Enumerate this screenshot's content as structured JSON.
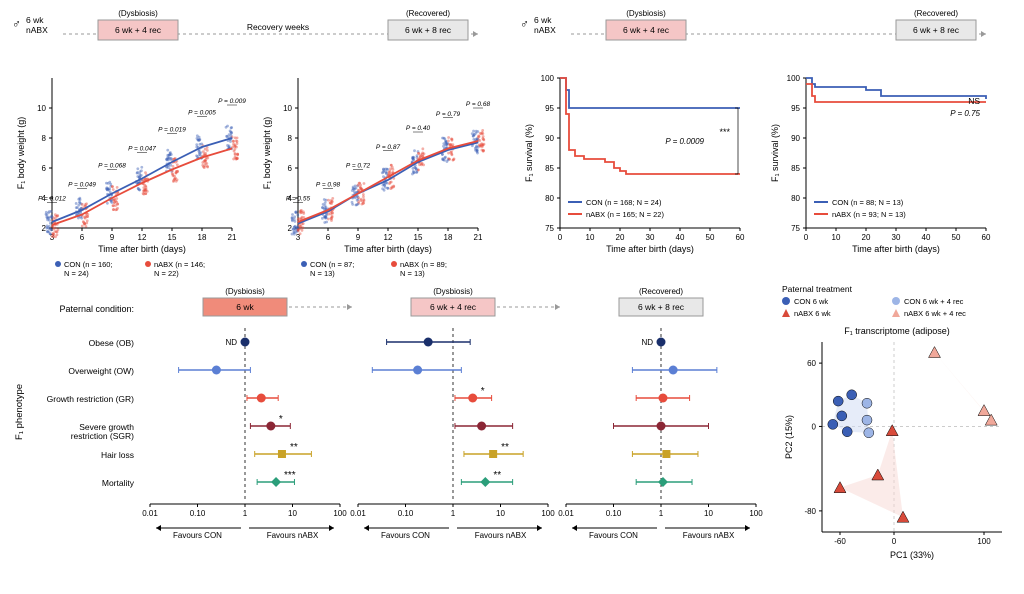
{
  "colors": {
    "con": "#3b5fb5",
    "nabx": "#e74c3c",
    "con_light": "#8ea8e0",
    "nabx_light": "#f5a99f",
    "dysbiosis_box": "#f5c6c6",
    "dysbiosis_box_dark": "#f08b7a",
    "recovered_box": "#e8e8e8",
    "grid": "#e0e0e0",
    "axis": "#000000",
    "text": "#000000",
    "forest_obese": "#1a2f6b",
    "forest_ow": "#5b7fd4",
    "forest_gr": "#e74c3c",
    "forest_sgr": "#8b2635",
    "forest_hair": "#c9a227",
    "forest_mort": "#2b9e7a"
  },
  "timelines": {
    "left": {
      "male_label": "6 wk\nnABX",
      "box1_super": "(Dysbiosis)",
      "box1": "6 wk + 4 rec",
      "mid": "Recovery weeks",
      "box2_super": "(Recovered)",
      "box2": "6 wk + 8 rec"
    },
    "right": {
      "male_label": "6 wk\nnABX",
      "box1_super": "(Dysbiosis)",
      "box1": "6 wk + 4 rec",
      "box2_super": "(Recovered)",
      "box2": "6 wk + 8 rec"
    }
  },
  "growth_charts": {
    "ylabel": "F₁ body weight (g)",
    "xlabel": "Time after birth (days)",
    "ylim": [
      2,
      12
    ],
    "yticks": [
      2,
      4,
      6,
      8,
      10
    ],
    "xticks": [
      3,
      6,
      9,
      12,
      15,
      18,
      21
    ],
    "left": {
      "pvals": [
        "P = 0.012",
        "P = 0.049",
        "P = 0.068",
        "P = 0.047",
        "P = 0.019",
        "P = 0.005",
        "P = 0.009"
      ],
      "con_curve": [
        2.4,
        3.2,
        4.3,
        5.3,
        6.4,
        7.4,
        8.0
      ],
      "nabx_curve": [
        2.2,
        2.9,
        4.0,
        5.0,
        5.9,
        6.7,
        7.3
      ],
      "legend_con": "CON (n = 160; N = 24)",
      "legend_nabx": "nABX (n = 146; N = 22)"
    },
    "right": {
      "pvals": [
        "P = 0.55",
        "P = 0.98",
        "P = 0.72",
        "P = 0.87",
        "P = 0.40",
        "P = 0.79",
        "P = 0.68"
      ],
      "con_curve": [
        2.3,
        3.1,
        4.3,
        5.2,
        6.4,
        7.2,
        7.7
      ],
      "nabx_curve": [
        2.4,
        3.2,
        4.3,
        5.4,
        6.5,
        7.3,
        7.8
      ],
      "legend_con": "CON (n = 87; N = 13)",
      "legend_nabx": "nABX (n = 89; N = 13)"
    }
  },
  "survival": {
    "ylabel": "F₁ survival (%)",
    "xlabel": "Time after birth (days)",
    "ylim": [
      75,
      100
    ],
    "yticks": [
      75,
      80,
      85,
      90,
      95,
      100
    ],
    "xticks": [
      0,
      10,
      20,
      30,
      40,
      50,
      60
    ],
    "left": {
      "con_steps": [
        [
          0,
          100
        ],
        [
          2,
          98
        ],
        [
          3,
          95
        ],
        [
          60,
          95
        ]
      ],
      "nabx_steps": [
        [
          0,
          100
        ],
        [
          2,
          94
        ],
        [
          3,
          88
        ],
        [
          5,
          87
        ],
        [
          8,
          86.5
        ],
        [
          15,
          86
        ],
        [
          18,
          85
        ],
        [
          20,
          84.5
        ],
        [
          22,
          84
        ],
        [
          60,
          84
        ]
      ],
      "p_label": "*** P = 0.0009",
      "legend_con": "CON (n = 168; N = 24)",
      "legend_nabx": "nABX (n = 165; N = 22)"
    },
    "right": {
      "con_steps": [
        [
          0,
          100
        ],
        [
          2,
          99
        ],
        [
          3,
          98.5
        ],
        [
          20,
          98
        ],
        [
          25,
          97
        ],
        [
          60,
          96.5
        ]
      ],
      "nabx_steps": [
        [
          0,
          99
        ],
        [
          2,
          97
        ],
        [
          3,
          96
        ],
        [
          20,
          96
        ],
        [
          30,
          96
        ],
        [
          60,
          96
        ]
      ],
      "p_label": "NS\nP = 0.75",
      "legend_con": "CON (n = 88; N = 13)",
      "legend_nabx": "nABX (n = 93; N = 13)"
    }
  },
  "forest": {
    "ylabel": "F₁ phenotype",
    "row_super": "Paternal condition:",
    "categories": [
      "Obese (OB)",
      "Overweight (OW)",
      "Growth restriction (GR)",
      "Severe growth\nrestriction (SGR)",
      "Hair loss",
      "Mortality"
    ],
    "xlabel_left": "Favours CON",
    "xlabel_right": "Favours nABX",
    "xticks": [
      0.01,
      0.1,
      1,
      10,
      100
    ],
    "xtick_labels": [
      "0.01",
      "0.10",
      "1",
      "10",
      "100"
    ],
    "panels": [
      {
        "box_super": "(Dysbiosis)",
        "box": "6 wk",
        "box_color": "#f08b7a",
        "points": [
          {
            "or": 1.0,
            "lo": null,
            "hi": null,
            "nd": true,
            "shape": "circle",
            "color": "#1a2f6b"
          },
          {
            "or": 0.25,
            "lo": 0.04,
            "hi": 1.3,
            "shape": "circle",
            "color": "#5b7fd4"
          },
          {
            "or": 2.2,
            "lo": 1.1,
            "hi": 5.0,
            "sig": "",
            "shape": "circle",
            "color": "#e74c3c"
          },
          {
            "or": 3.5,
            "lo": 1.3,
            "hi": 9.0,
            "sig": "*",
            "shape": "circle",
            "color": "#8b2635"
          },
          {
            "or": 6.0,
            "lo": 1.6,
            "hi": 25,
            "sig": "**",
            "shape": "square",
            "color": "#c9a227"
          },
          {
            "or": 4.5,
            "lo": 1.8,
            "hi": 11,
            "sig": "***",
            "shape": "diamond",
            "color": "#2b9e7a"
          }
        ]
      },
      {
        "box_super": "(Dysbiosis)",
        "box": "6 wk + 4 rec",
        "box_color": "#f5c6c6",
        "points": [
          {
            "or": 0.3,
            "lo": 0.04,
            "hi": 2.3,
            "shape": "circle",
            "color": "#1a2f6b"
          },
          {
            "or": 0.18,
            "lo": 0.02,
            "hi": 1.5,
            "shape": "circle",
            "color": "#5b7fd4"
          },
          {
            "or": 2.6,
            "lo": 1.1,
            "hi": 6.5,
            "sig": "*",
            "shape": "circle",
            "color": "#e74c3c"
          },
          {
            "or": 4.0,
            "lo": 1.1,
            "hi": 18,
            "shape": "circle",
            "color": "#8b2635"
          },
          {
            "or": 7.0,
            "lo": 1.7,
            "hi": 30,
            "sig": "**",
            "shape": "square",
            "color": "#c9a227"
          },
          {
            "or": 4.8,
            "lo": 1.5,
            "hi": 18,
            "sig": "**",
            "shape": "diamond",
            "color": "#2b9e7a"
          }
        ]
      },
      {
        "box_super": "(Recovered)",
        "box": "6 wk + 8 rec",
        "box_color": "#e8e8e8",
        "points": [
          {
            "or": 1.0,
            "lo": null,
            "hi": null,
            "nd": true,
            "shape": "circle",
            "color": "#1a2f6b"
          },
          {
            "or": 1.8,
            "lo": 0.25,
            "hi": 15,
            "shape": "circle",
            "color": "#5b7fd4"
          },
          {
            "or": 1.1,
            "lo": 0.3,
            "hi": 4.0,
            "shape": "circle",
            "color": "#e74c3c"
          },
          {
            "or": 1.0,
            "lo": 0.1,
            "hi": 10,
            "shape": "circle",
            "color": "#8b2635"
          },
          {
            "or": 1.3,
            "lo": 0.25,
            "hi": 6,
            "shape": "square",
            "color": "#c9a227"
          },
          {
            "or": 1.1,
            "lo": 0.3,
            "hi": 4.5,
            "shape": "diamond",
            "color": "#2b9e7a"
          }
        ]
      }
    ]
  },
  "pca": {
    "title": "F₁ transcriptome (adipose)",
    "legend_title": "Paternal treatment",
    "legend": [
      {
        "label": "CON 6 wk",
        "shape": "circle",
        "color": "#3b5fb5"
      },
      {
        "label": "CON 6 wk + 4 rec",
        "shape": "circle",
        "color": "#9db5e6"
      },
      {
        "label": "nABX 6 wk",
        "shape": "triangle",
        "color": "#d84a3a"
      },
      {
        "label": "nABX 6 wk + 4 rec",
        "shape": "triangle",
        "color": "#f0a89a"
      }
    ],
    "xlabel": "PC1 (33%)",
    "ylabel": "PC2 (15%)",
    "xlim": [
      -80,
      120
    ],
    "ylim": [
      -100,
      80
    ],
    "xticks": [
      -60,
      0,
      100
    ],
    "yticks": [
      -80,
      0,
      60
    ],
    "points": [
      {
        "x": -62,
        "y": 24,
        "shape": "circle",
        "color": "#3b5fb5"
      },
      {
        "x": -58,
        "y": 10,
        "shape": "circle",
        "color": "#3b5fb5"
      },
      {
        "x": -47,
        "y": 30,
        "shape": "circle",
        "color": "#3b5fb5"
      },
      {
        "x": -68,
        "y": 2,
        "shape": "circle",
        "color": "#3b5fb5"
      },
      {
        "x": -52,
        "y": -5,
        "shape": "circle",
        "color": "#3b5fb5"
      },
      {
        "x": -30,
        "y": 22,
        "shape": "circle",
        "color": "#9db5e6"
      },
      {
        "x": -30,
        "y": 6,
        "shape": "circle",
        "color": "#9db5e6"
      },
      {
        "x": -28,
        "y": -6,
        "shape": "circle",
        "color": "#9db5e6"
      },
      {
        "x": -18,
        "y": -46,
        "shape": "triangle",
        "color": "#d84a3a"
      },
      {
        "x": 10,
        "y": -86,
        "shape": "triangle",
        "color": "#d84a3a"
      },
      {
        "x": -60,
        "y": -58,
        "shape": "triangle",
        "color": "#d84a3a"
      },
      {
        "x": -2,
        "y": -4,
        "shape": "triangle",
        "color": "#d84a3a"
      },
      {
        "x": 45,
        "y": 70,
        "shape": "triangle",
        "color": "#f0a89a"
      },
      {
        "x": 100,
        "y": 15,
        "shape": "triangle",
        "color": "#f0a89a"
      },
      {
        "x": 108,
        "y": 6,
        "shape": "triangle",
        "color": "#f0a89a"
      }
    ],
    "hulls": [
      {
        "color": "#cddaf4",
        "pts": [
          [
            -68,
            2
          ],
          [
            -62,
            24
          ],
          [
            -47,
            30
          ],
          [
            -30,
            22
          ],
          [
            -28,
            -6
          ],
          [
            -52,
            -5
          ]
        ]
      },
      {
        "color": "#f7d8d3",
        "pts": [
          [
            -60,
            -58
          ],
          [
            -18,
            -46
          ],
          [
            -2,
            -4
          ],
          [
            10,
            -86
          ]
        ]
      },
      {
        "color": "#fce7e1",
        "pts": [
          [
            45,
            70
          ],
          [
            108,
            6
          ],
          [
            100,
            15
          ]
        ]
      }
    ]
  }
}
